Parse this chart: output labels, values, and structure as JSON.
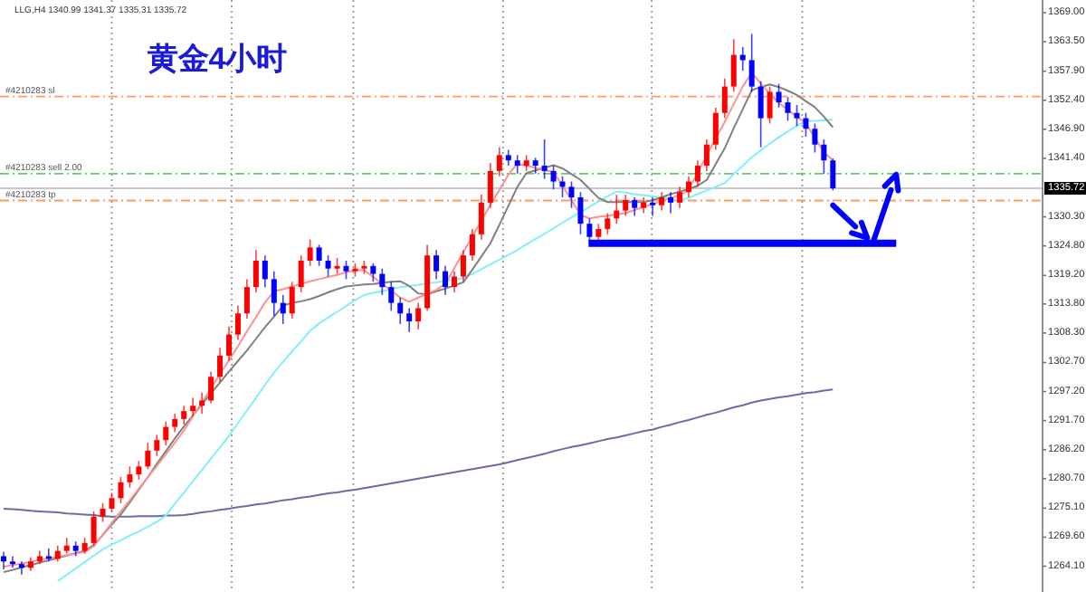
{
  "chart_data": {
    "type": "candlestick",
    "title": "黄金4小时",
    "annotations": [
      "LLG,H4  1340.99 1341.37 1335.31 1335.72"
    ],
    "categories": [
      null,
      null,
      null,
      null,
      null,
      null,
      null,
      null,
      null,
      null,
      null,
      null,
      null,
      null,
      null,
      null,
      null,
      null,
      null,
      null,
      null,
      null,
      null,
      null,
      null,
      null,
      null,
      null,
      null,
      null,
      null,
      null,
      null,
      null,
      null,
      null,
      null,
      null,
      null,
      null,
      null,
      null,
      null,
      null,
      null,
      null,
      null,
      null,
      null,
      null,
      null,
      null,
      null,
      null,
      null,
      null,
      null,
      null,
      null,
      null,
      null,
      null,
      null,
      null,
      null,
      null,
      null,
      null,
      null,
      null,
      null,
      null,
      null,
      null,
      null,
      null,
      null,
      null,
      null,
      null,
      null,
      null,
      null,
      null,
      null,
      null,
      null,
      null,
      null,
      null,
      null,
      null,
      null
    ],
    "ylim": [
      1259.9,
      1371.4
    ],
    "yticks": [
      {
        "value": 1369,
        "label": "1369.00"
      },
      {
        "value": 1363.5,
        "label": "1363.50"
      },
      {
        "value": 1357.9,
        "label": "1357.90"
      },
      {
        "value": 1352.4,
        "label": "1352.40"
      },
      {
        "value": 1346.9,
        "label": "1346.90"
      },
      {
        "value": 1341.4,
        "label": "1341.40"
      },
      {
        "value": 1330.3,
        "label": "1330.30"
      },
      {
        "value": 1324.8,
        "label": "1324.80"
      },
      {
        "value": 1319.2,
        "label": "1319.20"
      },
      {
        "value": 1313.8,
        "label": "1313.80"
      },
      {
        "value": 1308.3,
        "label": "1308.30"
      },
      {
        "value": 1302.7,
        "label": "1302.70"
      },
      {
        "value": 1297.2,
        "label": "1297.20"
      },
      {
        "value": 1291.7,
        "label": "1291.70"
      },
      {
        "value": 1286.2,
        "label": "1286.20"
      },
      {
        "value": 1280.7,
        "label": "1280.70"
      },
      {
        "value": 1275.1,
        "label": "1275.10"
      },
      {
        "value": 1269.6,
        "label": "1269.60"
      },
      {
        "value": 1264.1,
        "label": "1264.10"
      }
    ],
    "tick_labels": "y",
    "ref_lines": [
      {
        "axis": "y",
        "value": 1353.1,
        "label": "#4210283 sl",
        "color": "#ff9966",
        "line_style": "dashed"
      },
      {
        "axis": "y",
        "value": 1338.5,
        "label": "#4210283 sell 2.00",
        "color": "#66cc66",
        "line_style": "dashed"
      },
      {
        "axis": "y",
        "value": 1335.72,
        "label": "1335.72",
        "color": "#c8c8c8",
        "line_style": "solid"
      },
      {
        "axis": "y",
        "value": 1333.4,
        "label": "#4210283 tp",
        "color": "#ff9966",
        "line_style": "dashed"
      }
    ],
    "series": [
      {
        "type": "line",
        "color": "#6b6ba8",
        "values": [
          1275,
          1274.9,
          1274.8,
          1274.6,
          1274.5,
          1274.4,
          1274.3,
          1274.1,
          1274,
          1273.9,
          1273.8,
          1273.6,
          1273.5,
          1273.5,
          1273.5,
          1273.6,
          1273.6,
          1273.6,
          1273.7,
          1273.7,
          1273.8,
          1274,
          1274.3,
          1274.5,
          1274.8,
          1275,
          1275.3,
          1275.5,
          1275.8,
          1276,
          1276.3,
          1276.6,
          1276.8,
          1277.1,
          1277.3,
          1277.6,
          1277.9,
          1278.1,
          1278.4,
          1278.6,
          1278.9,
          1279.2,
          1279.5,
          1279.8,
          1280.1,
          1280.4,
          1280.7,
          1281,
          1281.3,
          1281.6,
          1281.9,
          1282.2,
          1282.5,
          1282.8,
          1283.1,
          1283.4,
          1283.8,
          1284.2,
          1284.6,
          1285,
          1285.4,
          1285.9,
          1286.3,
          1286.7,
          1287,
          1287.4,
          1287.8,
          1288.2,
          1288.5,
          1288.9,
          1289.3,
          1289.7,
          1290,
          1290.5,
          1290.9,
          1291.4,
          1291.8,
          1292.3,
          1292.8,
          1293.2,
          1293.7,
          1294.2,
          1294.6,
          1295.1,
          1295.5,
          1295.8,
          1296.1,
          1296.3,
          1296.6,
          1296.9,
          1297.1,
          1297.4,
          1297.6
        ]
      },
      {
        "type": "line",
        "color": "#80f0f8",
        "values": [
          null,
          null,
          null,
          null,
          null,
          null,
          1261.3,
          1262.5,
          1263.7,
          1264.9,
          1266.1,
          1267.3,
          1268.2,
          1269,
          1269.9,
          1270.7,
          1271.6,
          1272.5,
          1273.7,
          1276,
          1278,
          1280.2,
          1282.3,
          1284.5,
          1286.6,
          1288.8,
          1291.2,
          1293.6,
          1296,
          1298.5,
          1300.8,
          1302.8,
          1304.8,
          1306.7,
          1308.7,
          1310.1,
          1311.2,
          1312.3,
          1313.4,
          1314.5,
          1315.5,
          1315.9,
          1316.2,
          1316.6,
          1317,
          1317.2,
          1317.4,
          1317.7,
          1317.9,
          1318.2,
          1318.4,
          1318.7,
          1319.5,
          1320.4,
          1321.3,
          1322.2,
          1323.1,
          1324,
          1325.1,
          1326.1,
          1327.1,
          1328.1,
          1329.2,
          1330.2,
          1331.2,
          1332.2,
          1333.2,
          1334.2,
          1335.1,
          1334.9,
          1334.6,
          1334.4,
          1334.2,
          1334,
          1333.7,
          1333.5,
          1333.9,
          1334.6,
          1335.3,
          1336,
          1336.7,
          1338.4,
          1340,
          1341.6,
          1342.9,
          1344.2,
          1345.4,
          1346.5,
          1347.6,
          1348.4,
          1348.5,
          1348.6,
          1348.7
        ]
      },
      {
        "type": "line",
        "color": "#808080",
        "values": [
          1263,
          1263.4,
          1263.9,
          1264.3,
          1264.8,
          1265.2,
          1265.7,
          1266.1,
          1266.6,
          1267,
          1268.1,
          1270,
          1272,
          1273.9,
          1276.2,
          1278.6,
          1281,
          1283.5,
          1285.9,
          1288.3,
          1290.6,
          1292.7,
          1294.8,
          1296.9,
          1298.9,
          1301,
          1303,
          1305,
          1307.2,
          1309.4,
          1311.4,
          1313.5,
          1314,
          1314.3,
          1314.7,
          1315.3,
          1316,
          1316.6,
          1317.1,
          1317.3,
          1317.5,
          1317.6,
          1317.8,
          1318,
          1318.1,
          1317.2,
          1315.8,
          1315.6,
          1316.2,
          1316.7,
          1317.3,
          1317.9,
          1320.3,
          1322.8,
          1325.3,
          1328.8,
          1332.4,
          1336,
          1338.6,
          1339.1,
          1339.6,
          1340.1,
          1339.5,
          1338.4,
          1337.3,
          1335.6,
          1333.9,
          1333.1,
          1333.1,
          1333.1,
          1333.1,
          1333.1,
          1333.5,
          1334,
          1334.6,
          1335.1,
          1335.6,
          1336.2,
          1337.3,
          1340.3,
          1343.3,
          1347.1,
          1350.7,
          1354.3,
          1354.9,
          1355.4,
          1354.9,
          1354.2,
          1353.4,
          1352.2,
          1351.1,
          1349.3,
          1347.3
        ]
      },
      {
        "type": "line",
        "color": "#ff9090",
        "values": [
          1264,
          1264.3,
          1264.6,
          1264.9,
          1265.3,
          1265.6,
          1265.9,
          1266.2,
          1266.5,
          1266.8,
          1267.9,
          1270.1,
          1272.3,
          1274.5,
          1276.6,
          1278.8,
          1281,
          1283.1,
          1285.3,
          1287.5,
          1289.8,
          1292.5,
          1295.1,
          1297.8,
          1300.5,
          1303.1,
          1305.8,
          1308.6,
          1311.3,
          1314.1,
          1316.2,
          1316.6,
          1317.1,
          1317.6,
          1318.1,
          1318.5,
          1318.9,
          1319.3,
          1319.8,
          1320.2,
          1320.2,
          1318.9,
          1317.6,
          1316.3,
          1315,
          1314.2,
          1315,
          1315.7,
          1316.5,
          1317.6,
          1320.6,
          1323.6,
          1326.6,
          1329.6,
          1332.6,
          1335.4,
          1338.3,
          1340.4,
          1340,
          1339.6,
          1339.2,
          1338.8,
          1336.2,
          1333.5,
          1330.7,
          1330,
          1330.3,
          1330.5,
          1330.8,
          1331,
          1331.6,
          1332.2,
          1332.7,
          1333.3,
          1333.9,
          1334.4,
          1335.4,
          1338.7,
          1341.9,
          1345.2,
          1348.3,
          1351.7,
          1355,
          1357.6,
          1355.6,
          1353.6,
          1351.9,
          1350.6,
          1349.3,
          1348,
          1345.3,
          1342.6,
          1341
        ]
      },
      {
        "ohlc": [
          [
            1266,
            1266.8,
            1263.5,
            1265
          ],
          [
            1265,
            1266,
            1263.8,
            1264.5
          ],
          [
            1264.5,
            1265,
            1262.5,
            1263.8
          ],
          [
            1263.8,
            1265.8,
            1263.2,
            1265
          ],
          [
            1265,
            1267,
            1264.5,
            1266
          ],
          [
            1266,
            1267.5,
            1265,
            1265.5
          ],
          [
            1265.5,
            1268,
            1265,
            1267
          ],
          [
            1267,
            1269.5,
            1266.5,
            1268
          ],
          [
            1268,
            1268.8,
            1266,
            1267
          ],
          [
            1267,
            1269.5,
            1266.5,
            1268.5
          ],
          [
            1268.5,
            1274.5,
            1268,
            1273.5
          ],
          [
            1273.5,
            1276,
            1272.5,
            1275
          ],
          [
            1275,
            1278,
            1274.5,
            1277
          ],
          [
            1277,
            1281,
            1276,
            1280
          ],
          [
            1280,
            1283,
            1279,
            1281.5
          ],
          [
            1281.5,
            1284,
            1280.5,
            1283
          ],
          [
            1283,
            1287.5,
            1282.5,
            1286
          ],
          [
            1286,
            1289,
            1285,
            1288
          ],
          [
            1288,
            1291.5,
            1287,
            1290.5
          ],
          [
            1290.5,
            1293,
            1289.5,
            1292
          ],
          [
            1292,
            1294.5,
            1291,
            1293.5
          ],
          [
            1293.5,
            1296,
            1292.5,
            1294.5
          ],
          [
            1294.5,
            1297,
            1293,
            1295.5
          ],
          [
            1295.5,
            1301,
            1295,
            1300
          ],
          [
            1300,
            1305.5,
            1299,
            1304
          ],
          [
            1304,
            1309.5,
            1303,
            1308
          ],
          [
            1308,
            1313.5,
            1307,
            1312
          ],
          [
            1312,
            1318.5,
            1311,
            1317
          ],
          [
            1317,
            1324,
            1316,
            1322
          ],
          [
            1322,
            1323,
            1317,
            1318.5
          ],
          [
            1318.5,
            1320,
            1311.5,
            1314
          ],
          [
            1314,
            1315.5,
            1310,
            1312
          ],
          [
            1312,
            1318,
            1311,
            1317
          ],
          [
            1317,
            1323,
            1316,
            1322
          ],
          [
            1322,
            1326,
            1321,
            1324.5
          ],
          [
            1324.5,
            1325,
            1321,
            1322
          ],
          [
            1322,
            1323,
            1319,
            1320.5
          ],
          [
            1320.5,
            1322.5,
            1319.5,
            1321
          ],
          [
            1321,
            1322,
            1318.5,
            1320
          ],
          [
            1320,
            1321.5,
            1319,
            1320.5
          ],
          [
            1320.5,
            1322,
            1319.5,
            1321
          ],
          [
            1321,
            1321.5,
            1318,
            1319.5
          ],
          [
            1319.5,
            1320.5,
            1315.5,
            1317
          ],
          [
            1317,
            1318,
            1312.5,
            1314
          ],
          [
            1314,
            1315,
            1310,
            1312
          ],
          [
            1312,
            1313,
            1308.5,
            1310.5
          ],
          [
            1310.5,
            1314,
            1309,
            1313
          ],
          [
            1313,
            1325,
            1312.5,
            1323
          ],
          [
            1323,
            1324,
            1318.5,
            1320
          ],
          [
            1320,
            1321,
            1315.5,
            1317
          ],
          [
            1317,
            1320,
            1316,
            1319
          ],
          [
            1319,
            1324,
            1318,
            1323
          ],
          [
            1323,
            1328,
            1322,
            1327
          ],
          [
            1327,
            1334.5,
            1326,
            1333
          ],
          [
            1333,
            1340.5,
            1332,
            1339
          ],
          [
            1339,
            1343.5,
            1338,
            1342
          ],
          [
            1342,
            1343,
            1340,
            1341
          ],
          [
            1341,
            1342,
            1338.5,
            1340
          ],
          [
            1340,
            1342,
            1339,
            1341
          ],
          [
            1341,
            1341.5,
            1338.5,
            1340
          ],
          [
            1340,
            1345,
            1337.5,
            1339
          ],
          [
            1339,
            1340,
            1335.5,
            1337
          ],
          [
            1337,
            1338,
            1334,
            1336
          ],
          [
            1336,
            1337,
            1332,
            1334
          ],
          [
            1334,
            1335,
            1327,
            1329
          ],
          [
            1329,
            1330,
            1325.5,
            1326.5
          ],
          [
            1326.5,
            1329,
            1325.5,
            1328
          ],
          [
            1328,
            1331,
            1327,
            1330
          ],
          [
            1330,
            1334.5,
            1329,
            1331.5
          ],
          [
            1331.5,
            1334.5,
            1330.5,
            1333.5
          ],
          [
            1333.5,
            1334,
            1330.5,
            1332
          ],
          [
            1332,
            1334,
            1331,
            1333
          ],
          [
            1333,
            1334,
            1330.5,
            1332.5
          ],
          [
            1332.5,
            1335,
            1331.5,
            1334
          ],
          [
            1334,
            1335,
            1331,
            1333
          ],
          [
            1333,
            1336,
            1332,
            1335
          ],
          [
            1335,
            1338,
            1334,
            1337
          ],
          [
            1337,
            1341,
            1336,
            1340
          ],
          [
            1340,
            1345,
            1339,
            1344
          ],
          [
            1344,
            1351,
            1343,
            1350
          ],
          [
            1350,
            1356.5,
            1349,
            1355
          ],
          [
            1355,
            1364,
            1354,
            1361
          ],
          [
            1361,
            1362.5,
            1358,
            1360
          ],
          [
            1360,
            1365,
            1354,
            1355
          ],
          [
            1355,
            1356,
            1343.5,
            1349
          ],
          [
            1349,
            1355,
            1348,
            1354
          ],
          [
            1354,
            1355.5,
            1351,
            1352
          ],
          [
            1352,
            1353,
            1348.5,
            1350
          ],
          [
            1350,
            1351.5,
            1347.5,
            1349
          ],
          [
            1349,
            1350,
            1345.5,
            1347
          ],
          [
            1347,
            1348,
            1342.5,
            1344
          ],
          [
            1344,
            1345,
            1338.5,
            1341
          ],
          [
            1340.99,
            1341.37,
            1335.31,
            1335.72
          ]
        ],
        "colors": [
          "#0000ff",
          "#0000ff",
          "#0000ff",
          "#ff0000",
          "#ff0000",
          "#0000ff",
          "#ff0000",
          "#ff0000",
          "#0000ff",
          "#ff0000",
          "#ff0000",
          "#ff0000",
          "#ff0000",
          "#ff0000",
          "#ff0000",
          "#ff0000",
          "#ff0000",
          "#ff0000",
          "#ff0000",
          "#ff0000",
          "#ff0000",
          "#ff0000",
          "#ff0000",
          "#ff0000",
          "#ff0000",
          "#ff0000",
          "#ff0000",
          "#ff0000",
          "#ff0000",
          "#0000ff",
          "#0000ff",
          "#0000ff",
          "#ff0000",
          "#ff0000",
          "#ff0000",
          "#0000ff",
          "#0000ff",
          "#ff0000",
          "#0000ff",
          "#ff0000",
          "#ff0000",
          "#0000ff",
          "#0000ff",
          "#0000ff",
          "#0000ff",
          "#0000ff",
          "#ff0000",
          "#ff0000",
          "#0000ff",
          "#0000ff",
          "#ff0000",
          "#ff0000",
          "#ff0000",
          "#ff0000",
          "#ff0000",
          "#ff0000",
          "#0000ff",
          "#0000ff",
          "#ff0000",
          "#0000ff",
          "#0000ff",
          "#0000ff",
          "#0000ff",
          "#0000ff",
          "#0000ff",
          "#0000ff",
          "#ff0000",
          "#ff0000",
          "#ff0000",
          "#ff0000",
          "#0000ff",
          "#ff0000",
          "#0000ff",
          "#ff0000",
          "#0000ff",
          "#ff0000",
          "#ff0000",
          "#ff0000",
          "#ff0000",
          "#ff0000",
          "#ff0000",
          "#ff0000",
          "#0000ff",
          "#0000ff",
          "#0000ff",
          "#ff0000",
          "#0000ff",
          "#0000ff",
          "#0000ff",
          "#0000ff",
          "#0000ff",
          "#0000ff",
          "#0000ff"
        ]
      }
    ]
  }
}
